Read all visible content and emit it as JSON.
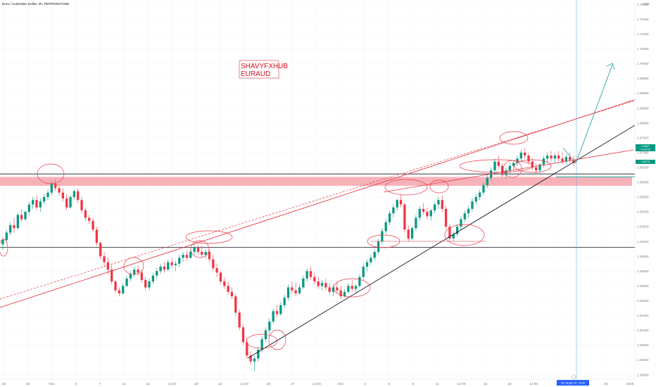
{
  "header": {
    "symbol_title": "Euro / Australian Dollar, 4h, PEPPERSTONE",
    "currency": "AUD"
  },
  "watermark": {
    "line1": "SHAVYFXHUB",
    "line2": "EURAUD"
  },
  "price_badges": {
    "last": "1.66627",
    "countdown": "01:40:43",
    "line_level": "1.66178"
  },
  "time_badge": "Фр, 3в Дек '24 · 08:00",
  "colors": {
    "up": "#089981",
    "down": "#f23645",
    "annotation_red": "#e53945",
    "zone_fill": "#f6a5ab",
    "black_line": "#131722",
    "arrow_teal": "#26a69a",
    "cursor_blue": "#5b9bd5"
  },
  "chart_data": {
    "type": "candlestick",
    "title": "Euro / Australian Dollar, 4h, PEPPERSTONE",
    "ylabel": "AUD",
    "ylim": [
      1.5935,
      1.7215
    ],
    "y_ticks": [
      "1.72000",
      "1.71500",
      "1.71000",
      "1.70500",
      "1.70000",
      "1.69500",
      "1.69000",
      "1.68500",
      "1.68000",
      "1.67500",
      "1.67000",
      "1.66500",
      "1.66000",
      "1.65500",
      "1.65000",
      "1.64500",
      "1.64000",
      "1.63500",
      "1.63000",
      "1.62500",
      "1.62000",
      "1.61500",
      "1.61000",
      "1.60500",
      "1.60000",
      "1.59500"
    ],
    "x_ticks": [
      "28",
      "30",
      "Nov",
      "5",
      "7",
      "11",
      "13",
      "14:00",
      "19",
      "22",
      "14:00",
      "25",
      "27",
      "14:00",
      "Dec",
      "3",
      "5",
      "9",
      "11",
      "14:00",
      "16",
      "18",
      "14:00",
      "20",
      "23",
      "25",
      "2025"
    ],
    "candles": [
      [
        1.639,
        1.6415,
        1.637,
        1.6405
      ],
      [
        1.6405,
        1.644,
        1.6395,
        1.643
      ],
      [
        1.643,
        1.6465,
        1.642,
        1.6455
      ],
      [
        1.6455,
        1.648,
        1.643,
        1.6445
      ],
      [
        1.6445,
        1.6495,
        1.644,
        1.649
      ],
      [
        1.649,
        1.651,
        1.6465,
        1.6475
      ],
      [
        1.6475,
        1.6505,
        1.647,
        1.65
      ],
      [
        1.65,
        1.6535,
        1.649,
        1.6525
      ],
      [
        1.6525,
        1.655,
        1.651,
        1.654
      ],
      [
        1.654,
        1.6555,
        1.6505,
        1.6515
      ],
      [
        1.6515,
        1.6545,
        1.65,
        1.6535
      ],
      [
        1.6535,
        1.656,
        1.6525,
        1.655
      ],
      [
        1.655,
        1.6575,
        1.654,
        1.6565
      ],
      [
        1.6565,
        1.6605,
        1.6555,
        1.6595
      ],
      [
        1.6595,
        1.661,
        1.657,
        1.658
      ],
      [
        1.658,
        1.659,
        1.6555,
        1.6565
      ],
      [
        1.6565,
        1.658,
        1.6535,
        1.6545
      ],
      [
        1.6545,
        1.656,
        1.6505,
        1.6515
      ],
      [
        1.6515,
        1.6555,
        1.651,
        1.655
      ],
      [
        1.655,
        1.6575,
        1.654,
        1.657
      ],
      [
        1.657,
        1.658,
        1.653,
        1.654
      ],
      [
        1.654,
        1.655,
        1.6495,
        1.6505
      ],
      [
        1.6505,
        1.6515,
        1.647,
        1.648
      ],
      [
        1.648,
        1.649,
        1.646,
        1.647
      ],
      [
        1.647,
        1.648,
        1.643,
        1.644
      ],
      [
        1.644,
        1.645,
        1.6385,
        1.6395
      ],
      [
        1.6395,
        1.64,
        1.634,
        1.635
      ],
      [
        1.635,
        1.6365,
        1.6315,
        1.633
      ],
      [
        1.633,
        1.6345,
        1.629,
        1.6305
      ],
      [
        1.6305,
        1.632,
        1.6255,
        1.6265
      ],
      [
        1.6265,
        1.627,
        1.6225,
        1.6235
      ],
      [
        1.6235,
        1.6245,
        1.6215,
        1.6225
      ],
      [
        1.6225,
        1.626,
        1.622,
        1.625
      ],
      [
        1.625,
        1.6285,
        1.6245,
        1.6275
      ],
      [
        1.6275,
        1.63,
        1.6265,
        1.629
      ],
      [
        1.629,
        1.6315,
        1.628,
        1.6305
      ],
      [
        1.6305,
        1.632,
        1.6285,
        1.6295
      ],
      [
        1.6295,
        1.6305,
        1.626,
        1.627
      ],
      [
        1.627,
        1.628,
        1.6235,
        1.6245
      ],
      [
        1.6245,
        1.6275,
        1.6235,
        1.6265
      ],
      [
        1.6265,
        1.6295,
        1.6255,
        1.6285
      ],
      [
        1.6285,
        1.631,
        1.6275,
        1.63
      ],
      [
        1.63,
        1.6325,
        1.629,
        1.6315
      ],
      [
        1.6315,
        1.633,
        1.6295,
        1.6305
      ],
      [
        1.6305,
        1.634,
        1.63,
        1.633
      ],
      [
        1.633,
        1.6345,
        1.631,
        1.632
      ],
      [
        1.632,
        1.6335,
        1.63,
        1.6325
      ],
      [
        1.6325,
        1.6355,
        1.6315,
        1.6345
      ],
      [
        1.6345,
        1.6365,
        1.633,
        1.6355
      ],
      [
        1.6355,
        1.637,
        1.6335,
        1.6345
      ],
      [
        1.6345,
        1.6375,
        1.634,
        1.6365
      ],
      [
        1.6365,
        1.639,
        1.6355,
        1.638
      ],
      [
        1.638,
        1.639,
        1.6355,
        1.6365
      ],
      [
        1.6365,
        1.6385,
        1.6345,
        1.6355
      ],
      [
        1.6355,
        1.6375,
        1.634,
        1.6365
      ],
      [
        1.6365,
        1.6375,
        1.633,
        1.634
      ],
      [
        1.634,
        1.6355,
        1.63,
        1.631
      ],
      [
        1.631,
        1.6325,
        1.628,
        1.6295
      ],
      [
        1.6295,
        1.63,
        1.6255,
        1.6265
      ],
      [
        1.6265,
        1.628,
        1.624,
        1.625
      ],
      [
        1.625,
        1.6265,
        1.622,
        1.623
      ],
      [
        1.623,
        1.6245,
        1.6205,
        1.6215
      ],
      [
        1.6215,
        1.6225,
        1.615,
        1.616
      ],
      [
        1.616,
        1.617,
        1.61,
        1.611
      ],
      [
        1.611,
        1.612,
        1.605,
        1.606
      ],
      [
        1.606,
        1.6075,
        1.6005,
        1.6015
      ],
      [
        1.6015,
        1.603,
        1.5985,
        1.5995
      ],
      [
        1.5995,
        1.6015,
        1.5965,
        1.6005
      ],
      [
        1.6005,
        1.6045,
        1.5995,
        1.6035
      ],
      [
        1.6035,
        1.608,
        1.6025,
        1.607
      ],
      [
        1.607,
        1.611,
        1.606,
        1.61
      ],
      [
        1.61,
        1.614,
        1.609,
        1.613
      ],
      [
        1.613,
        1.6175,
        1.612,
        1.6165
      ],
      [
        1.6165,
        1.6185,
        1.6145,
        1.6155
      ],
      [
        1.6155,
        1.6195,
        1.615,
        1.6185
      ],
      [
        1.6185,
        1.622,
        1.6175,
        1.621
      ],
      [
        1.621,
        1.6255,
        1.62,
        1.6245
      ],
      [
        1.6245,
        1.6265,
        1.6225,
        1.6235
      ],
      [
        1.6235,
        1.626,
        1.6215,
        1.6225
      ],
      [
        1.6225,
        1.6255,
        1.622,
        1.6245
      ],
      [
        1.6245,
        1.6285,
        1.624,
        1.6275
      ],
      [
        1.6275,
        1.631,
        1.6265,
        1.63
      ],
      [
        1.63,
        1.6315,
        1.627,
        1.628
      ],
      [
        1.628,
        1.6295,
        1.6255,
        1.6265
      ],
      [
        1.6265,
        1.628,
        1.624,
        1.625
      ],
      [
        1.625,
        1.627,
        1.6235,
        1.626
      ],
      [
        1.626,
        1.6275,
        1.6235,
        1.6245
      ],
      [
        1.6245,
        1.626,
        1.622,
        1.623
      ],
      [
        1.623,
        1.6255,
        1.6215,
        1.6245
      ],
      [
        1.6245,
        1.6265,
        1.6225,
        1.6235
      ],
      [
        1.6235,
        1.625,
        1.6205,
        1.6215
      ],
      [
        1.6215,
        1.624,
        1.621,
        1.623
      ],
      [
        1.623,
        1.626,
        1.6225,
        1.625
      ],
      [
        1.625,
        1.627,
        1.623,
        1.624
      ],
      [
        1.624,
        1.6255,
        1.6225,
        1.625
      ],
      [
        1.625,
        1.629,
        1.6245,
        1.628
      ],
      [
        1.628,
        1.6325,
        1.627,
        1.6315
      ],
      [
        1.6315,
        1.634,
        1.63,
        1.633
      ],
      [
        1.633,
        1.6355,
        1.632,
        1.6345
      ],
      [
        1.6345,
        1.6375,
        1.6335,
        1.6365
      ],
      [
        1.6365,
        1.641,
        1.6355,
        1.64
      ],
      [
        1.64,
        1.6445,
        1.639,
        1.6435
      ],
      [
        1.6435,
        1.6475,
        1.6425,
        1.6465
      ],
      [
        1.6465,
        1.6505,
        1.6455,
        1.6495
      ],
      [
        1.6495,
        1.6525,
        1.648,
        1.6515
      ],
      [
        1.6515,
        1.6545,
        1.6505,
        1.654
      ],
      [
        1.654,
        1.656,
        1.6515,
        1.6525
      ],
      [
        1.6525,
        1.653,
        1.643,
        1.644
      ],
      [
        1.644,
        1.6455,
        1.64,
        1.641
      ],
      [
        1.641,
        1.645,
        1.6405,
        1.6445
      ],
      [
        1.6445,
        1.649,
        1.6435,
        1.648
      ],
      [
        1.648,
        1.652,
        1.647,
        1.651
      ],
      [
        1.651,
        1.653,
        1.649,
        1.65
      ],
      [
        1.65,
        1.6515,
        1.6475,
        1.6485
      ],
      [
        1.6485,
        1.651,
        1.647,
        1.6505
      ],
      [
        1.6505,
        1.6535,
        1.6495,
        1.6525
      ],
      [
        1.6525,
        1.655,
        1.651,
        1.654
      ],
      [
        1.654,
        1.6555,
        1.65,
        1.651
      ],
      [
        1.651,
        1.652,
        1.644,
        1.645
      ],
      [
        1.645,
        1.646,
        1.64,
        1.641
      ],
      [
        1.641,
        1.6435,
        1.64,
        1.6425
      ],
      [
        1.6425,
        1.646,
        1.6415,
        1.645
      ],
      [
        1.645,
        1.6485,
        1.644,
        1.6475
      ],
      [
        1.6475,
        1.6505,
        1.6465,
        1.6495
      ],
      [
        1.6495,
        1.652,
        1.648,
        1.651
      ],
      [
        1.651,
        1.6545,
        1.65,
        1.6535
      ],
      [
        1.6535,
        1.656,
        1.6525,
        1.655
      ],
      [
        1.655,
        1.6575,
        1.654,
        1.6565
      ],
      [
        1.6565,
        1.66,
        1.6555,
        1.659
      ],
      [
        1.659,
        1.6625,
        1.658,
        1.6615
      ],
      [
        1.6615,
        1.665,
        1.6605,
        1.664
      ],
      [
        1.664,
        1.668,
        1.663,
        1.667
      ],
      [
        1.667,
        1.669,
        1.6645,
        1.6655
      ],
      [
        1.6655,
        1.6665,
        1.6615,
        1.6625
      ],
      [
        1.6625,
        1.665,
        1.661,
        1.664
      ],
      [
        1.664,
        1.6665,
        1.663,
        1.6655
      ],
      [
        1.6655,
        1.6675,
        1.664,
        1.6665
      ],
      [
        1.6665,
        1.669,
        1.6655,
        1.668
      ],
      [
        1.668,
        1.671,
        1.667,
        1.67
      ],
      [
        1.67,
        1.6715,
        1.668,
        1.669
      ],
      [
        1.669,
        1.67,
        1.666,
        1.667
      ],
      [
        1.667,
        1.668,
        1.664,
        1.665
      ],
      [
        1.665,
        1.6665,
        1.6625,
        1.664
      ],
      [
        1.664,
        1.6665,
        1.663,
        1.666
      ],
      [
        1.666,
        1.669,
        1.665,
        1.668
      ],
      [
        1.668,
        1.67,
        1.6665,
        1.669
      ],
      [
        1.669,
        1.6705,
        1.667,
        1.668
      ],
      [
        1.668,
        1.67,
        1.6665,
        1.669
      ],
      [
        1.669,
        1.6705,
        1.667,
        1.668
      ],
      [
        1.668,
        1.67,
        1.666,
        1.667
      ],
      [
        1.667,
        1.6695,
        1.666,
        1.6685
      ],
      [
        1.6685,
        1.67,
        1.6665,
        1.6675
      ],
      [
        1.6675,
        1.669,
        1.6655,
        1.6665
      ]
    ]
  }
}
